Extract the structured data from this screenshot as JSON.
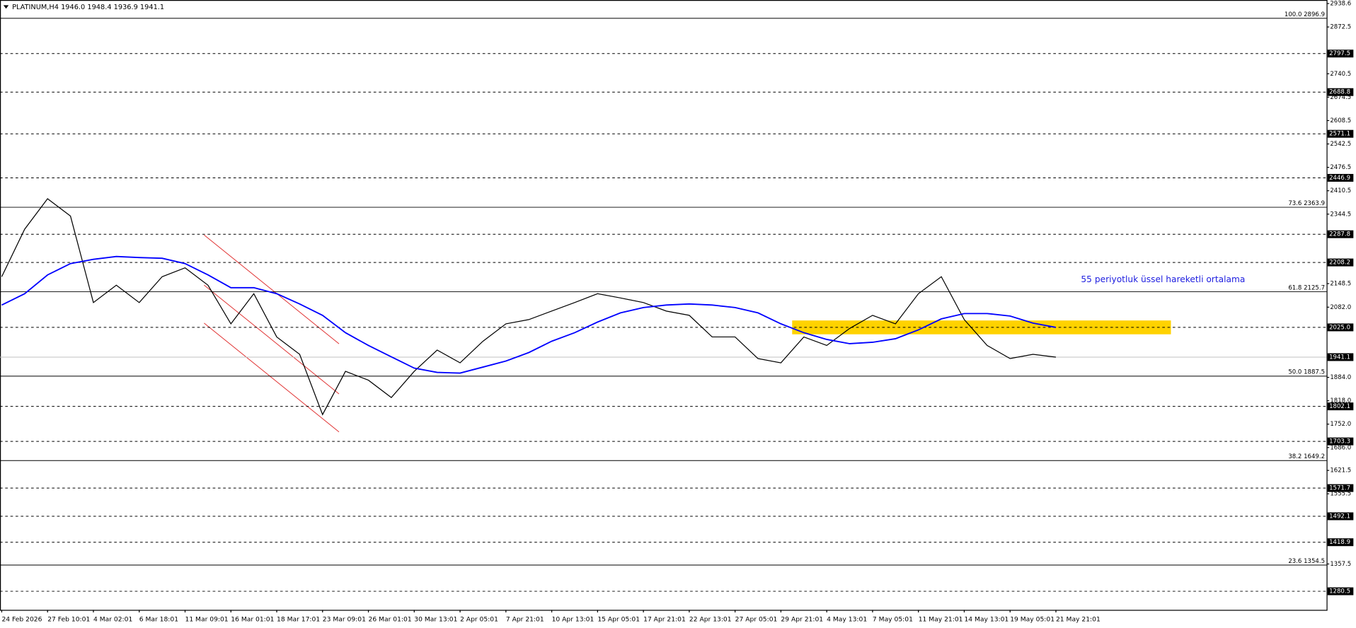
{
  "chart_data": {
    "type": "line",
    "title": "PLATINUM,H4  1946.0 1948.4 1936.9 1941.1",
    "categories": [
      "24 Feb 2026",
      null,
      "27 Feb 10:01",
      null,
      "4 Mar 02:01",
      null,
      "6 Mar 18:01",
      null,
      "11 Mar 09:01",
      null,
      "16 Mar 01:01",
      null,
      "18 Mar 17:01",
      null,
      "23 Mar 09:01",
      null,
      "26 Mar 01:01",
      null,
      "30 Mar 13:01",
      null,
      "2 Apr 05:01",
      null,
      "7 Apr 21:01",
      null,
      "10 Apr 13:01",
      null,
      "15 Apr 05:01",
      null,
      "17 Apr 21:01",
      null,
      "22 Apr 13:01",
      null,
      "27 Apr 05:01",
      null,
      "29 Apr 21:01",
      null,
      "4 May 13:01",
      null,
      "7 May 05:01",
      null,
      "11 May 21:01",
      null,
      "14 May 13:01",
      null,
      "19 May 05:01",
      null,
      "21 May 21:01"
    ],
    "series": [
      {
        "color": "#000000",
        "values": [
          2168,
          2302,
          2388,
          2339,
          2095,
          2144,
          2095,
          2168,
          2193,
          2144,
          2035,
          2120,
          1998,
          1949,
          1779,
          1901,
          1876,
          1827,
          1901,
          1961,
          1925,
          1986,
          2035,
          2047,
          2071,
          2095,
          2120,
          2108,
          2095,
          2071,
          2059,
          1998,
          1998,
          1937,
          1925,
          1998,
          1974,
          2022,
          2059,
          2035,
          2120,
          2168,
          2047,
          1974,
          1937,
          1949,
          1941.1
        ]
      },
      {
        "color": "#0000ff",
        "values": [
          2088,
          2120,
          2173,
          2205,
          2217,
          2225,
          2222,
          2220,
          2205,
          2173,
          2137,
          2137,
          2120,
          2091,
          2059,
          2010,
          1974,
          1942,
          1910,
          1898,
          1896,
          1913,
          1930,
          1954,
          1986,
          2010,
          2040,
          2066,
          2081,
          2088,
          2091,
          2088,
          2081,
          2066,
          2035,
          2010,
          1991,
          1979,
          1983,
          1993,
          2018,
          2049,
          2064,
          2064,
          2057,
          2037,
          2025
        ]
      }
    ],
    "ylim": [
      1230.5,
      2948.6
    ],
    "yticks": [
      2938.6,
      2872.5,
      2740.5,
      2674.5,
      2608.5,
      2542.5,
      2476.5,
      2410.5,
      2344.5,
      2148.5,
      {
        "value": 2082,
        "label": "2082.0"
      },
      {
        "value": 1884,
        "label": "1884.0"
      },
      {
        "value": 1818,
        "label": "1818.0"
      },
      {
        "value": 1752,
        "label": "1752.0"
      },
      {
        "value": 1686,
        "label": "1686.0"
      },
      1621.5,
      1555.5,
      1357.5
    ],
    "levels": [
      2797.5,
      2688.8,
      2571.1,
      2446.9,
      2287.8,
      2208.2,
      {
        "value": 2025,
        "label": "2025.0"
      },
      1802.1,
      1703.3,
      1571.7,
      1492.1,
      1418.9,
      1280.5
    ],
    "current_price": 1941.1,
    "fibonacci": [
      {
        "level": "100.0",
        "price": 2896.9
      },
      {
        "level": "73.6",
        "price": 2363.9
      },
      {
        "level": "61.8",
        "price": 2125.7
      },
      {
        "level": "50.0",
        "price": 1887.5
      },
      {
        "level": "38.2",
        "price": 1649.2
      },
      {
        "level": "23.6",
        "price": 1354.5
      }
    ],
    "annotation": "55 periyotluk üssel hareketli ortalama"
  }
}
